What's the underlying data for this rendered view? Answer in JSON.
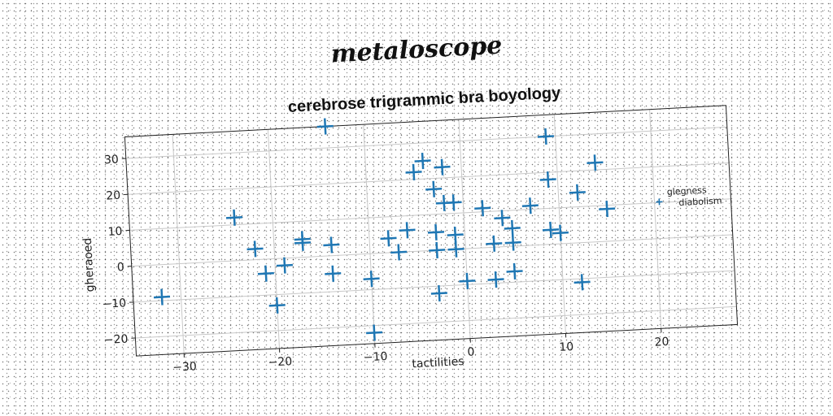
{
  "page_title": "metaloscope",
  "chart_data": {
    "type": "scatter",
    "title": "cerebrose trigrammic bra boyology",
    "xlabel": "tactilities",
    "ylabel": "gheraoed",
    "xlim": [
      -35,
      28
    ],
    "ylim": [
      -25,
      36
    ],
    "xticks": [
      -30,
      -20,
      -10,
      0,
      10,
      20
    ],
    "yticks": [
      -20,
      -10,
      0,
      10,
      20,
      30
    ],
    "xtick_labels": [
      "−30",
      "−20",
      "−10",
      "0",
      "10",
      "20"
    ],
    "ytick_labels": [
      "−20",
      "−10",
      "0",
      "10",
      "20",
      "30"
    ],
    "grid": true,
    "marker": "plus",
    "color": "#1f77b4",
    "legend": {
      "placement": "right",
      "entries": [
        "glegness",
        "diabolism"
      ]
    },
    "series": [
      {
        "x": [
          -14,
          -4,
          -2,
          -5,
          -3,
          9,
          14,
          -1,
          -2,
          -24,
          -22,
          -17,
          -17,
          -14,
          -8,
          -6,
          -3,
          2,
          4,
          5,
          7,
          9,
          9,
          10,
          12,
          15,
          -21,
          -19,
          -14,
          -10,
          -7,
          -3,
          -1,
          3,
          5,
          -32,
          -20,
          -10,
          -3,
          0,
          3,
          5,
          12,
          -1
        ],
        "y": [
          36,
          25,
          23,
          22,
          17,
          30,
          22,
          13,
          13,
          12,
          3,
          5,
          4,
          3,
          4,
          6,
          5,
          11,
          8,
          5,
          11,
          18,
          4,
          3,
          14,
          9,
          -4,
          -2,
          -5,
          -7,
          0,
          0,
          0,
          1,
          1,
          -9,
          -13,
          -22,
          -12,
          -9,
          -9,
          -7,
          -11,
          4
        ]
      }
    ]
  }
}
